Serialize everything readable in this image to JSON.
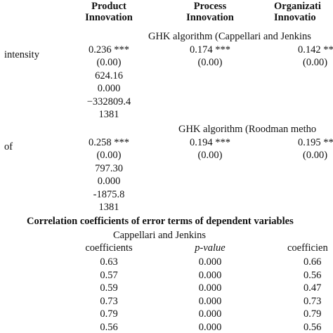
{
  "header": {
    "product": [
      "Product",
      "Innovation"
    ],
    "process": [
      "Process",
      "Innovation"
    ],
    "organizational": [
      "Organizati",
      "Innovatio"
    ]
  },
  "section1": {
    "method": "GHK algorithm (Cappellari and Jenkins",
    "row_label": "intensity",
    "coef": [
      "0.236 ***",
      "0.174 ***",
      "0.142 ***"
    ],
    "pval": [
      "(0.00)",
      "(0.00)",
      "(0.00)"
    ],
    "stats": [
      "624.16",
      "0.000",
      "−332809.4",
      "1381"
    ]
  },
  "section2": {
    "method": "GHK algorithm (Roodman metho",
    "row_label": "of",
    "coef": [
      "0.258 ***",
      "0.194 ***",
      "0.195 ***"
    ],
    "pval": [
      "(0.00)",
      "(0.00)",
      "(0.00)"
    ],
    "stats": [
      "797.30",
      "0.000",
      "-1875.8",
      "1381"
    ]
  },
  "correlation": {
    "title": "Correlation coefficients of error terms of dependent variables",
    "subheading": "Cappellari and Jenkins",
    "col_headers": [
      "coefficients",
      "p-value",
      "coefficien"
    ],
    "rows": [
      [
        "0.63",
        "0.000",
        "0.66"
      ],
      [
        "0.57",
        "0.000",
        "0.56"
      ],
      [
        "0.59",
        "0.000",
        "0.47"
      ],
      [
        "0.73",
        "0.000",
        "0.73"
      ],
      [
        "0.79",
        "0.000",
        "0.79"
      ],
      [
        "0.56",
        "0.000",
        "0.56"
      ]
    ]
  }
}
